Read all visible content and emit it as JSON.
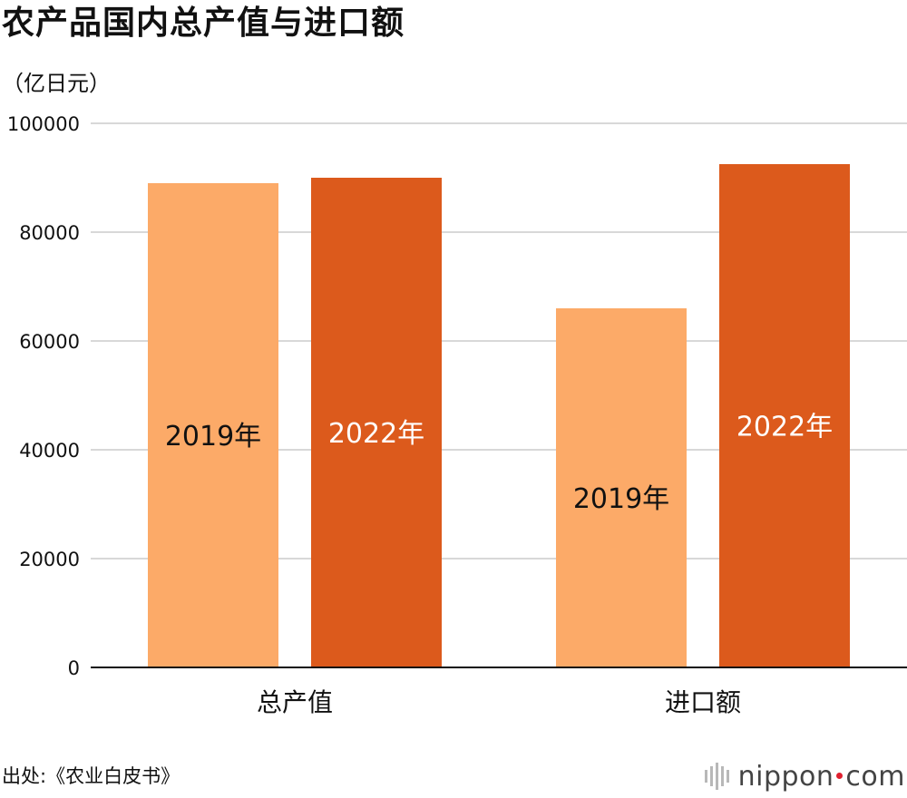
{
  "header": {
    "title": "农产品国内总产值与进口额",
    "unit": "（亿日元）"
  },
  "chart_data": {
    "type": "bar",
    "title": "农产品国内总产值与进口额",
    "ylabel": "（亿日元）",
    "xlabel": "",
    "ylim": [
      0,
      100000
    ],
    "yticks": [
      "0",
      "20000",
      "40000",
      "60000",
      "80000",
      "100000"
    ],
    "grid": true,
    "categories": [
      "总产值",
      "进口额"
    ],
    "series": [
      {
        "name": "2019年",
        "label": "2019年",
        "color": "#fcaa68",
        "label_color": "#111111",
        "values": [
          89000,
          66000
        ]
      },
      {
        "name": "2022年",
        "label": "2022年",
        "color": "#dc5a1c",
        "label_color": "#ffffff",
        "values": [
          90000,
          92500
        ]
      }
    ]
  },
  "footer": {
    "source": "出处:《农业白皮书》",
    "brand_name": "nippon",
    "brand_domain": "com",
    "brand_dot_color": "#e0202f"
  }
}
